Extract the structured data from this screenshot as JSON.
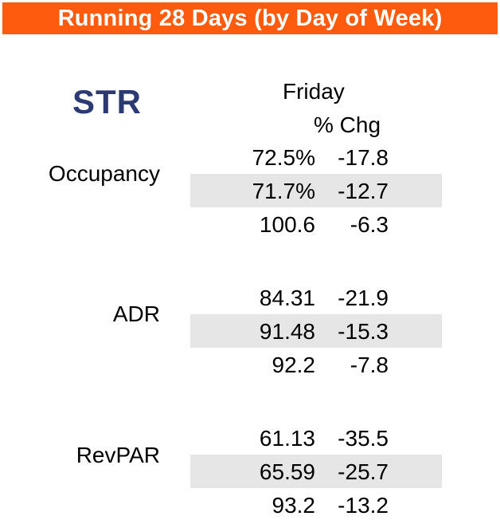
{
  "title": "Running 28 Days (by Day of Week)",
  "logo_text": "STR",
  "header": {
    "day": "Friday",
    "change": "% Chg"
  },
  "colors": {
    "banner": "#ff5b0f",
    "band": "#e6e6e6",
    "logo": "#2b3a73"
  },
  "metrics": [
    {
      "label": "Occupancy",
      "rows": [
        {
          "value": "72.5%",
          "change": "-17.8"
        },
        {
          "value": "71.7%",
          "change": "-12.7"
        },
        {
          "value": "100.6",
          "change": "-6.3"
        }
      ]
    },
    {
      "label": "ADR",
      "rows": [
        {
          "value": "84.31",
          "change": "-21.9"
        },
        {
          "value": "91.48",
          "change": "-15.3"
        },
        {
          "value": "92.2",
          "change": "-7.8"
        }
      ]
    },
    {
      "label": "RevPAR",
      "rows": [
        {
          "value": "61.13",
          "change": "-35.5"
        },
        {
          "value": "65.59",
          "change": "-25.7"
        },
        {
          "value": "93.2",
          "change": "-13.2"
        }
      ]
    }
  ]
}
